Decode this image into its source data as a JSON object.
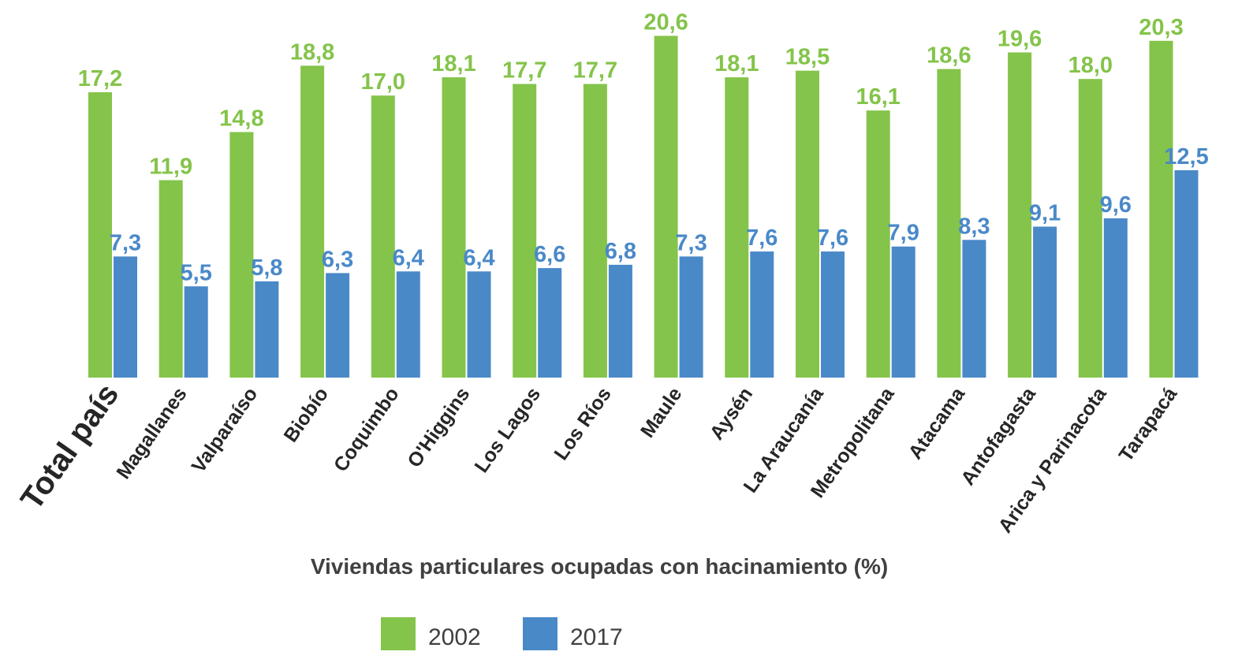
{
  "chart_data": {
    "type": "bar",
    "xlabel": "Viviendas particulares ocupadas con hacinamiento (%)",
    "categories": [
      "Total país",
      "Magallanes",
      "Valparaíso",
      "Biobío",
      "Coquimbo",
      "O'Higgins",
      "Los Lagos",
      "Los Ríos",
      "Maule",
      "Aysén",
      "La Araucanía",
      "Metropolitana",
      "Atacama",
      "Antofagasta",
      "Arica y Parinacota",
      "Tarapacá"
    ],
    "series": [
      {
        "name": "2002",
        "color": "#84c44a",
        "values": [
          17.2,
          11.9,
          14.8,
          18.8,
          17.0,
          18.1,
          17.7,
          17.7,
          20.6,
          18.1,
          18.5,
          16.1,
          18.6,
          19.6,
          18.0,
          20.3
        ],
        "value_labels": [
          "17,2",
          "11,9",
          "14,8",
          "18,8",
          "17,0",
          "18,1",
          "17,7",
          "17,7",
          "20,6",
          "18,1",
          "18,5",
          "16,1",
          "18,6",
          "19,6",
          "18,0",
          "20,3"
        ]
      },
      {
        "name": "2017",
        "color": "#4a89c8",
        "values": [
          7.3,
          5.5,
          5.8,
          6.3,
          6.4,
          6.4,
          6.6,
          6.8,
          7.3,
          7.6,
          7.6,
          7.9,
          8.3,
          9.1,
          9.6,
          12.5
        ],
        "value_labels": [
          "7,3",
          "5,5",
          "5,8",
          "6,3",
          "6,4",
          "6,4",
          "6,6",
          "6,8",
          "7,3",
          "7,6",
          "7,6",
          "7,9",
          "8,3",
          "9,1",
          "9,6",
          "12,5"
        ]
      }
    ],
    "ylim": [
      0,
      22
    ]
  }
}
